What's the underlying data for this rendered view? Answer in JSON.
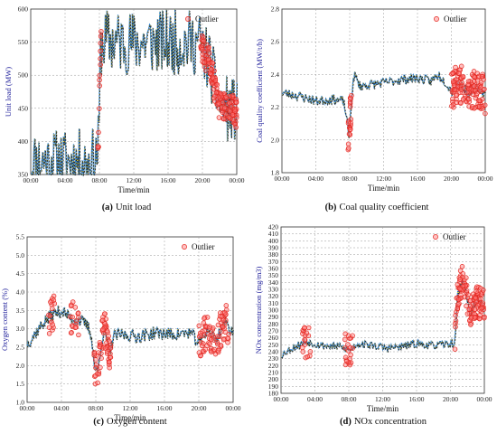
{
  "charts": [
    {
      "type": "line",
      "caption_tag": "(a)",
      "caption_text": "Unit load",
      "ylabel": "Unit load (MW)",
      "xlabel": "Time/min",
      "legend": "Outlier",
      "ylim": [
        350,
        600
      ],
      "yticks": [
        "350",
        "400",
        "450",
        "500",
        "550",
        "600"
      ],
      "xticks": [
        "00:00",
        "04:00",
        "08:00",
        "12:00",
        "16:00",
        "20:00",
        "00:00"
      ],
      "segments": [
        [
          0,
          370
        ],
        [
          6.6,
          370
        ],
        [
          7.5,
          372
        ],
        [
          7.9,
          395
        ],
        [
          8.0,
          470
        ],
        [
          8.15,
          545
        ],
        [
          8.4,
          552
        ],
        [
          12,
          550
        ],
        [
          16,
          550
        ],
        [
          19.5,
          550
        ],
        [
          19.9,
          545
        ],
        [
          20.3,
          530
        ],
        [
          20.8,
          520
        ],
        [
          21.3,
          490
        ],
        [
          21.7,
          470
        ],
        [
          22.1,
          450
        ],
        [
          22.6,
          455
        ],
        [
          23.0,
          445
        ],
        [
          23.6,
          450
        ],
        [
          24,
          440
        ]
      ],
      "noise": 0.004,
      "outlier_ranges": [
        [
          7.8,
          8.2,
          0.35
        ],
        [
          19.8,
          24,
          0.6
        ]
      ],
      "outlier_spread": 22,
      "seed": 11
    },
    {
      "type": "line",
      "caption_tag": "(b)",
      "caption_text": "Coal quality coefficient",
      "ylabel": "Coal quality coefficient (MW/t/h)",
      "xlabel": "Time/min",
      "legend": "Outlier",
      "ylim": [
        1.8,
        2.8
      ],
      "yticks": [
        "1.8",
        "2.0",
        "2.2",
        "2.4",
        "2.6",
        "2.8"
      ],
      "xticks": [
        "00:00",
        "04:00",
        "08:00",
        "12:00",
        "16:00",
        "20:00",
        "00:00"
      ],
      "segments": [
        [
          0,
          2.29
        ],
        [
          2,
          2.27
        ],
        [
          4,
          2.24
        ],
        [
          6,
          2.25
        ],
        [
          7.2,
          2.24
        ],
        [
          7.6,
          2.15
        ],
        [
          7.9,
          2.0
        ],
        [
          8.1,
          2.2
        ],
        [
          8.5,
          2.4
        ],
        [
          9.2,
          2.33
        ],
        [
          10.5,
          2.34
        ],
        [
          12,
          2.35
        ],
        [
          14,
          2.37
        ],
        [
          16,
          2.38
        ],
        [
          17.5,
          2.36
        ],
        [
          18.5,
          2.4
        ],
        [
          19.2,
          2.36
        ],
        [
          20,
          2.3
        ],
        [
          21,
          2.35
        ],
        [
          22,
          2.28
        ],
        [
          23,
          2.32
        ],
        [
          24,
          2.28
        ]
      ],
      "noise": 0.03,
      "outlier_ranges": [
        [
          7.8,
          8.2,
          0.6
        ],
        [
          20,
          24,
          0.55
        ]
      ],
      "outlier_spread": 0.12,
      "seed": 23
    },
    {
      "type": "line",
      "caption_tag": "(c)",
      "caption_text": "Oxygen content",
      "ylabel": "Oxygen content (%)",
      "xlabel": "Time/min",
      "legend": "Outlier",
      "ylim": [
        1.0,
        5.5
      ],
      "yticks": [
        "1.0",
        "1.5",
        "2.0",
        "2.5",
        "3.0",
        "3.5",
        "4.0",
        "4.5",
        "5.0",
        "5.5"
      ],
      "xticks": [
        "00:00",
        "04:00",
        "08:00",
        "12:00",
        "16:00",
        "20:00",
        "00:00"
      ],
      "segments": [
        [
          0,
          2.6
        ],
        [
          1,
          2.9
        ],
        [
          2,
          3.2
        ],
        [
          3,
          3.4
        ],
        [
          4,
          3.5
        ],
        [
          5,
          3.3
        ],
        [
          6,
          3.25
        ],
        [
          7,
          3.1
        ],
        [
          7.5,
          2.8
        ],
        [
          7.8,
          2.0
        ],
        [
          8.2,
          1.8
        ],
        [
          8.6,
          2.6
        ],
        [
          9,
          3.0
        ],
        [
          9.6,
          2.3
        ],
        [
          10,
          2.8
        ],
        [
          11,
          2.85
        ],
        [
          13,
          2.8
        ],
        [
          15,
          2.9
        ],
        [
          17,
          2.85
        ],
        [
          19,
          2.9
        ],
        [
          20,
          2.6
        ],
        [
          21,
          3.0
        ],
        [
          22,
          2.7
        ],
        [
          23,
          3.2
        ],
        [
          24,
          2.9
        ]
      ],
      "noise": 0.18,
      "outlier_ranges": [
        [
          2.5,
          3.2,
          0.25
        ],
        [
          5,
          6,
          0.2
        ],
        [
          7.8,
          9.8,
          0.5
        ],
        [
          20,
          23.5,
          0.35
        ]
      ],
      "outlier_spread": 0.5,
      "seed": 37
    },
    {
      "type": "line",
      "caption_tag": "(d)",
      "caption_text": "NOx concentration",
      "ylabel": "NOx concentration (mg/m3)",
      "xlabel": "Time/min",
      "legend": "Outlier",
      "ylim": [
        180,
        430
      ],
      "yticks": [
        "180",
        "190",
        "200",
        "210",
        "220",
        "230",
        "240",
        "250",
        "260",
        "270",
        "280",
        "290",
        "300",
        "310",
        "320",
        "330",
        "340",
        "350",
        "360",
        "370",
        "380",
        "390",
        "400",
        "410",
        "420"
      ],
      "xticks": [
        "00:00",
        "04:00",
        "08:00",
        "12:00",
        "16:00",
        "20:00",
        "00:00"
      ],
      "segments": [
        [
          0,
          238
        ],
        [
          1.5,
          250
        ],
        [
          3,
          258
        ],
        [
          5,
          252
        ],
        [
          7,
          250
        ],
        [
          8,
          245
        ],
        [
          9,
          255
        ],
        [
          11,
          252
        ],
        [
          12.5,
          248
        ],
        [
          14,
          250
        ],
        [
          16,
          255
        ],
        [
          18,
          252
        ],
        [
          20,
          255
        ],
        [
          20.5,
          255
        ],
        [
          20.8,
          330
        ],
        [
          21.5,
          350
        ],
        [
          22.3,
          300
        ],
        [
          23,
          320
        ],
        [
          24,
          310
        ]
      ],
      "noise": 6,
      "outlier_ranges": [
        [
          2.5,
          3.5,
          0.2
        ],
        [
          7.5,
          8.5,
          0.25
        ],
        [
          20.5,
          24,
          0.55
        ]
      ],
      "outlier_spread": 25,
      "seed": 53
    }
  ]
}
